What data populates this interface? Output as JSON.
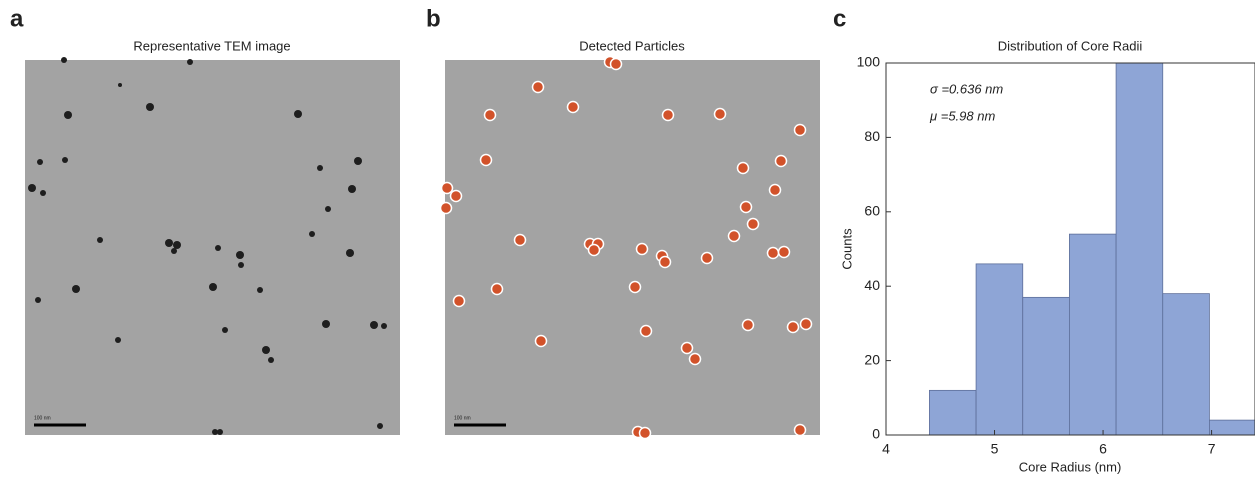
{
  "panels": [
    {
      "letter": "a",
      "title": "Representative TEM image",
      "scale_bar": "100 nm"
    },
    {
      "letter": "b",
      "title": "Detected Particles",
      "scale_bar": "100 nm"
    }
  ],
  "chart_data": {
    "type": "histogram",
    "letter": "c",
    "title": "Distribution of Core Radii",
    "x_label": "Core Radius (nm)",
    "y_label": "Counts",
    "bins": [
      4.4,
      4.83,
      5.26,
      5.69,
      6.12,
      6.55,
      6.98,
      7.41
    ],
    "values": [
      12,
      46,
      37,
      54,
      100,
      38,
      4
    ],
    "color": "#8ea5d6",
    "xlim": [
      4,
      7.4
    ],
    "ylim": [
      0,
      100
    ],
    "xticks": [
      4,
      5,
      6,
      7
    ],
    "yticks": [
      0,
      20,
      40,
      60,
      80,
      100
    ],
    "annotations": [
      "σ =0.636 nm",
      "μ =5.98 nm"
    ]
  }
}
